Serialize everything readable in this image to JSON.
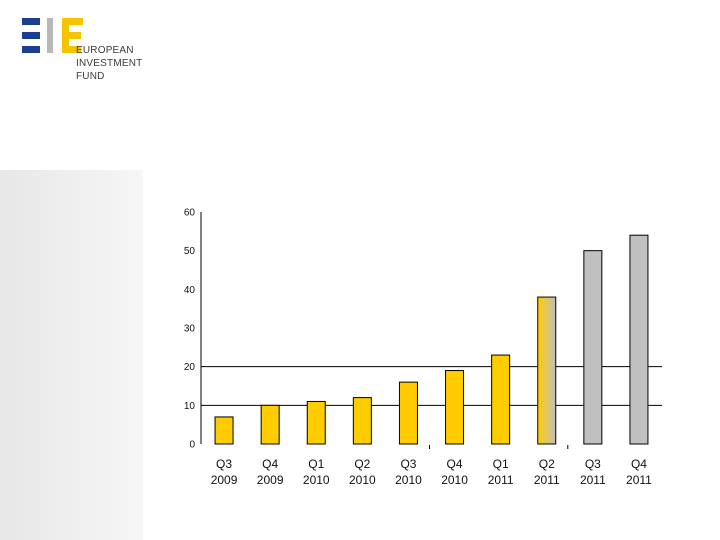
{
  "logo": {
    "name_lines": [
      "EUROPEAN",
      "INVESTMENT",
      "FUND"
    ],
    "colors": {
      "blue": "#1b3f90",
      "yellow": "#f5c400",
      "gray": "#b8b8b8"
    }
  },
  "chart_data": {
    "type": "bar",
    "categories": [
      [
        "Q3",
        "2009"
      ],
      [
        "Q4",
        "2009"
      ],
      [
        "Q1",
        "2010"
      ],
      [
        "Q2",
        "2010"
      ],
      [
        "Q3",
        "2010"
      ],
      [
        "Q4",
        "2010"
      ],
      [
        "Q1",
        "2011"
      ],
      [
        "Q2",
        "2011"
      ],
      [
        "Q3",
        "2011"
      ],
      [
        "Q4",
        "2011"
      ]
    ],
    "values": [
      7,
      10,
      11,
      12,
      16,
      19,
      23,
      38,
      50,
      54
    ],
    "bar_styles": [
      "actual",
      "actual",
      "actual",
      "actual",
      "actual",
      "actual",
      "actual",
      "transition",
      "projected",
      "projected"
    ],
    "colors": {
      "actual": "#ffcc00",
      "projected": "#c0c0c0",
      "bar_outline": "#000000"
    },
    "ylim": [
      0,
      60
    ],
    "yticks": [
      "0",
      "10",
      "20",
      "30",
      "40",
      "50",
      "60"
    ],
    "reference_lines": [
      10,
      20
    ],
    "title": "",
    "xlabel": "",
    "ylabel": ""
  }
}
